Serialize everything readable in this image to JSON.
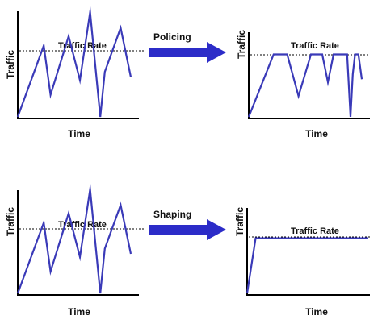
{
  "colors": {
    "traffic_line": "#3a3ab8",
    "traffic_line_dark": "#101050",
    "arrow_fill": "#2c2cc8",
    "axis": "#000000"
  },
  "panels": [
    {
      "id": "input-top",
      "ylabel": "Traffic",
      "xlabel": "Time",
      "rate_label": "Traffic Rate",
      "rate_level": 0.63,
      "series": [
        [
          0,
          0
        ],
        [
          0.23,
          0.68
        ],
        [
          0.29,
          0.21
        ],
        [
          0.45,
          0.77
        ],
        [
          0.55,
          0.35
        ],
        [
          0.64,
          1.0
        ],
        [
          0.73,
          0.0
        ],
        [
          0.77,
          0.43
        ],
        [
          0.91,
          0.85
        ],
        [
          1.0,
          0.38
        ]
      ]
    },
    {
      "id": "policing-result",
      "ylabel": "Traffic",
      "xlabel": "Time",
      "rate_label": "Traffic Rate",
      "rate_level": 0.63,
      "series": [
        [
          0,
          0
        ],
        [
          0.22,
          0.63
        ],
        [
          0.27,
          0.63
        ],
        [
          0.29,
          0.63
        ],
        [
          0.34,
          0.63
        ],
        [
          0.44,
          0.21
        ],
        [
          0.55,
          0.63
        ],
        [
          0.6,
          0.63
        ],
        [
          0.65,
          0.63
        ],
        [
          0.7,
          0.35
        ],
        [
          0.75,
          0.63
        ],
        [
          0.81,
          0.63
        ],
        [
          0.84,
          0.63
        ],
        [
          0.87,
          0.63
        ],
        [
          0.9,
          0.0
        ],
        [
          0.92,
          0.43
        ],
        [
          0.94,
          0.63
        ],
        [
          0.97,
          0.63
        ],
        [
          1.0,
          0.38
        ]
      ]
    },
    {
      "id": "input-bottom",
      "ylabel": "Traffic",
      "xlabel": "Time",
      "rate_label": "Traffic Rate",
      "rate_level": 0.63,
      "series": [
        [
          0,
          0
        ],
        [
          0.23,
          0.68
        ],
        [
          0.29,
          0.21
        ],
        [
          0.45,
          0.77
        ],
        [
          0.55,
          0.35
        ],
        [
          0.64,
          1.0
        ],
        [
          0.73,
          0.0
        ],
        [
          0.77,
          0.43
        ],
        [
          0.91,
          0.85
        ],
        [
          1.0,
          0.38
        ]
      ]
    },
    {
      "id": "shaping-result",
      "ylabel": "Traffic",
      "xlabel": "Time",
      "rate_label": "Traffic Rate",
      "rate_level": 0.57,
      "series": [
        [
          0,
          0
        ],
        [
          0.07,
          0.57
        ],
        [
          0.1,
          0.57
        ],
        [
          1.0,
          0.57
        ]
      ]
    }
  ],
  "transitions": [
    {
      "id": "policing",
      "label": "Policing"
    },
    {
      "id": "shaping",
      "label": "Shaping"
    }
  ]
}
